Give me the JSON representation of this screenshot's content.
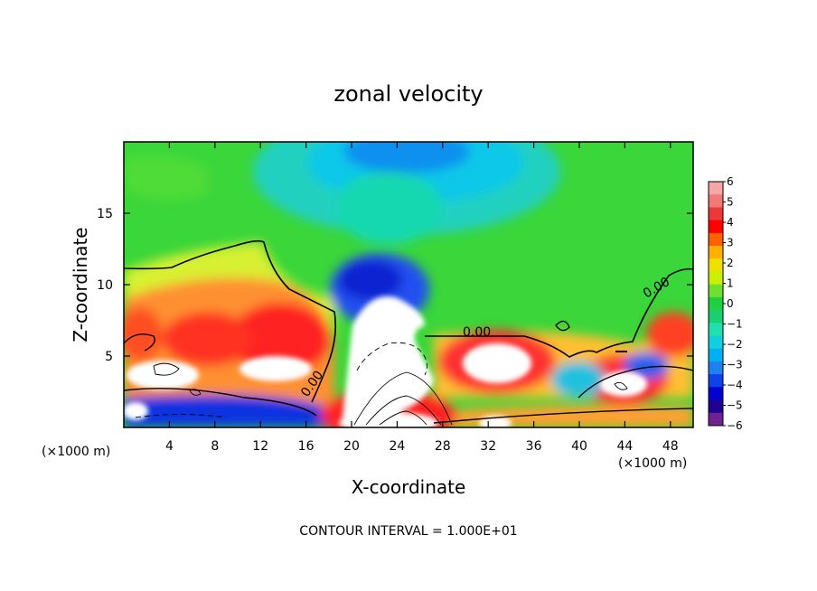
{
  "chart_data": {
    "type": "heatmap",
    "title": "zonal velocity",
    "xlabel": "X-coordinate",
    "ylabel": "Z-coordinate",
    "x_unit_label": "(×1000 m)",
    "x_unit_label_right": "(×1000 m)",
    "footer": "CONTOUR INTERVAL = 1.000E+01",
    "xlim": [
      0,
      50
    ],
    "ylim": [
      0,
      20
    ],
    "x_ticks": [
      "4",
      "8",
      "12",
      "16",
      "20",
      "24",
      "28",
      "32",
      "36",
      "40",
      "44",
      "48"
    ],
    "y_ticks": [
      "5",
      "10",
      "15"
    ],
    "colorbar": {
      "range": [
        -6,
        6
      ],
      "ticks": [
        "6",
        "5",
        "4",
        "3",
        "2",
        "1",
        "0",
        "−1",
        "−2",
        "−3",
        "−4",
        "−5",
        "−6"
      ],
      "colors": [
        "#f5a7a7",
        "#f07878",
        "#ec3838",
        "#ff0000",
        "#ff6000",
        "#ffb000",
        "#f0e000",
        "#c8f000",
        "#70e030",
        "#20d040",
        "#18d070",
        "#20e0b0",
        "#10d0e0",
        "#00b0f0",
        "#2080f0",
        "#1040e8",
        "#0000d0",
        "#200090",
        "#702090"
      ]
    },
    "contour_labels": [
      "0.00",
      "0.00",
      "0.00"
    ]
  }
}
